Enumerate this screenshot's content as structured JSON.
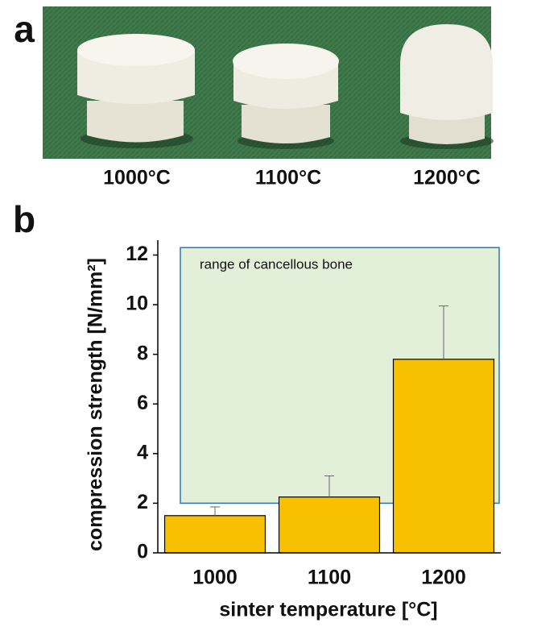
{
  "panel_labels": [
    "a",
    "b"
  ],
  "photo": {
    "captions": [
      "1000°C",
      "1100°C",
      "1200°C"
    ]
  },
  "chart_data": {
    "type": "bar",
    "x_label": "sinter temperature [°C]",
    "y_label": "compression strength [N/mm²]",
    "categories": [
      "1000",
      "1100",
      "1200"
    ],
    "values": [
      1.5,
      2.25,
      7.8
    ],
    "errors": [
      0.35,
      0.85,
      2.15
    ],
    "color": "#f7c000",
    "ylim": [
      0,
      12.6
    ],
    "yticks": [
      0,
      2,
      4,
      6,
      8,
      10,
      12
    ],
    "annotation": "range of cancellous bone",
    "range": [
      2,
      12.3
    ]
  }
}
